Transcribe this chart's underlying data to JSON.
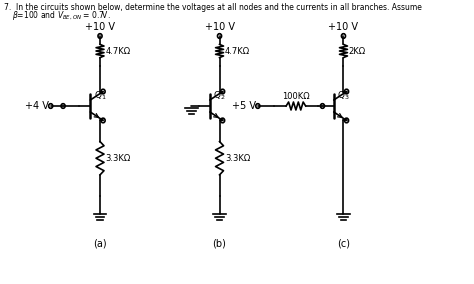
{
  "bg_color": "#ffffff",
  "header1": "7.  In the circuits shown below, determine the voltages at all nodes and the currents in all branches. Assume",
  "header2": "$\\beta$=100 and $V_{BE,ON}$ = 0.7V.",
  "vcc": "+10 V",
  "va": "+4 V",
  "v5": "+5 V",
  "r1a": "4.7KΩ",
  "r2a": "3.3KΩ",
  "r1b": "4.7KΩ",
  "r2b": "3.3KΩ",
  "r1c": "2KΩ",
  "r_base_c": "100KΩ",
  "q1": "Q$_1$",
  "q2": "Q$_2$",
  "q3": "Q$_3$",
  "la": "(a)",
  "lb": "(b)",
  "lc": "(c)"
}
